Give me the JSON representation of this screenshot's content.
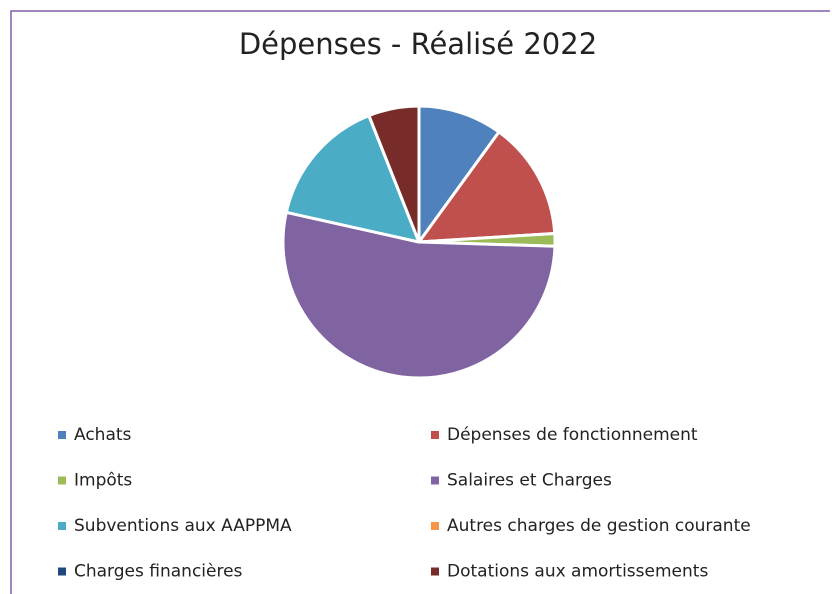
{
  "chart_data": {
    "type": "pie",
    "title": "Dépenses - Réalisé 2022",
    "categories": [
      "Achats",
      "Dépenses de fonctionnement",
      "Impôts",
      "Salaires et Charges",
      "Subventions aux AAPPMA",
      "Autres charges de gestion courante",
      "Charges financières",
      "Dotations aux amortissements"
    ],
    "values": [
      10,
      14,
      1.5,
      53,
      15.5,
      0,
      0,
      6
    ],
    "colors": [
      "#4f81bd",
      "#c0504d",
      "#9bbb59",
      "#8064a2",
      "#4bacc6",
      "#f79646",
      "#1f497d",
      "#772c2a"
    ],
    "legend": "bottom"
  }
}
